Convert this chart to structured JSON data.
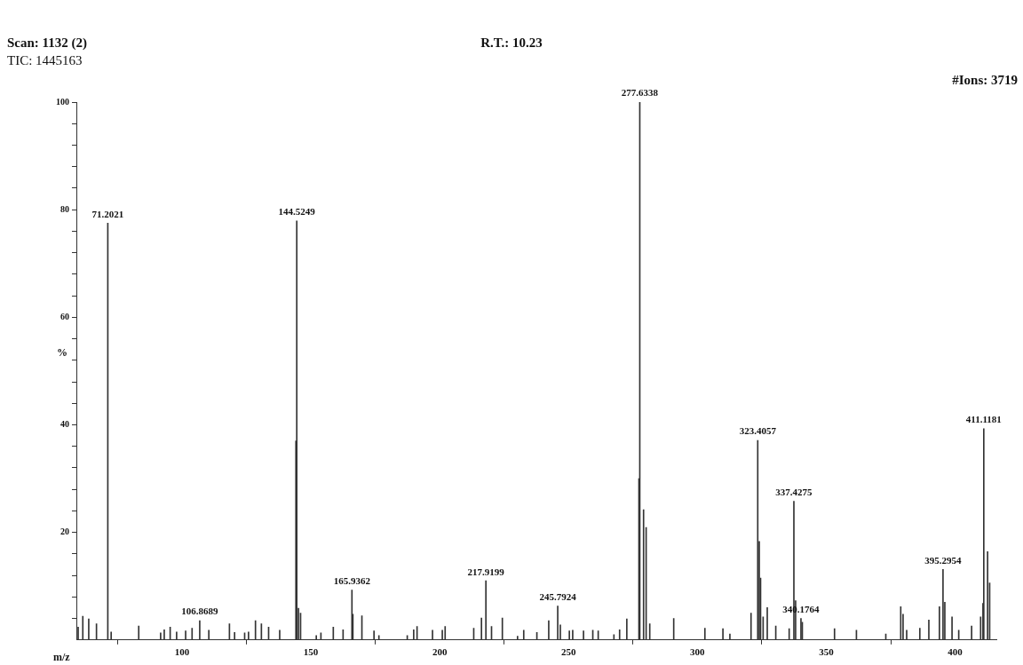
{
  "chart_data": {
    "type": "bar",
    "title": "R.T.: 10.23",
    "xlabel": "m/z",
    "ylabel": "%",
    "color": "#333333",
    "x": [
      59.7,
      61.5,
      63.8,
      66.8,
      70.9,
      71.2021,
      72.5,
      83.2,
      91.7,
      93.1,
      95.4,
      97.9,
      101.4,
      103.9,
      106.8689,
      110.4,
      118.4,
      120.4,
      124.3,
      125.8,
      128.5,
      130.8,
      133.6,
      137.9,
      144.2,
      144.5249,
      145.2,
      146.0,
      152.1,
      153.9,
      158.7,
      162.5,
      165.9362,
      166.3,
      169.8,
      174.5,
      176.4,
      187.4,
      189.9,
      191.2,
      197.2,
      201.0,
      202.1,
      213.2,
      216.2,
      217.9199,
      220.1,
      224.3,
      230.2,
      232.6,
      237.7,
      242.3,
      245.7924,
      246.8,
      250.3,
      251.6,
      255.8,
      259.4,
      261.5,
      267.6,
      269.8,
      272.6,
      277.3,
      277.6338,
      279.1,
      280.1,
      281.5,
      290.8,
      302.9,
      309.9,
      312.6,
      320.8,
      323.4057,
      324.0,
      324.5,
      325.5,
      327.1,
      330.4,
      335.6,
      337.4275,
      338.1,
      340.1764,
      340.7,
      353.2,
      361.7,
      373.1,
      378.9,
      379.8,
      381.2,
      386.3,
      389.8,
      393.9,
      395.2954,
      396.0,
      398.8,
      401.4,
      406.4,
      409.9,
      410.8,
      411.1181,
      412.6,
      413.4
    ],
    "values": [
      2.4,
      4.4,
      3.9,
      3.0,
      null,
      77.5,
      1.5,
      2.6,
      1.3,
      1.9,
      2.4,
      1.5,
      1.7,
      2.2,
      3.6,
      1.8,
      3.0,
      1.4,
      1.3,
      1.5,
      3.6,
      3.0,
      2.4,
      1.8,
      37,
      77.9,
      5.9,
      5.0,
      0.8,
      1.3,
      2.4,
      1.9,
      9.3,
      4.8,
      4.5,
      1.7,
      0.8,
      0.8,
      1.9,
      2.5,
      1.8,
      1.8,
      2.5,
      2.2,
      4.1,
      11.0,
      2.5,
      4.1,
      0.7,
      1.8,
      1.4,
      3.6,
      6.3,
      2.8,
      1.7,
      1.8,
      1.7,
      1.8,
      1.7,
      1.0,
      1.9,
      3.9,
      30,
      100,
      24.2,
      20.9,
      3.0,
      4.0,
      2.2,
      2.1,
      1.1,
      5.0,
      37.1,
      18.3,
      11.5,
      4.3,
      6.0,
      2.6,
      2.1,
      25.8,
      7.3,
      4.0,
      3.3,
      2.1,
      1.8,
      1.1,
      6.2,
      4.8,
      1.8,
      2.2,
      3.7,
      6.2,
      13.1,
      7.0,
      4.3,
      1.8,
      2.6,
      4.3,
      6.8,
      39.3,
      16.4,
      10.6
    ],
    "xlim": [
      59,
      416
    ],
    "xticks": [
      100,
      150,
      200,
      250,
      300,
      350,
      400
    ],
    "ylim": [
      0,
      100
    ],
    "yticks": [
      {
        "value": 4,
        "label": null
      },
      {
        "value": 8,
        "label": null
      },
      {
        "value": 12,
        "label": null
      },
      {
        "value": 16,
        "label": null
      },
      20,
      {
        "value": 24,
        "label": null
      },
      {
        "value": 28,
        "label": null
      },
      {
        "value": 32,
        "label": null
      },
      {
        "value": 36,
        "label": null
      },
      40,
      {
        "value": 44,
        "label": null
      },
      {
        "value": 48,
        "label": null
      },
      {
        "value": 52,
        "label": null
      },
      {
        "value": 56,
        "label": null
      },
      60,
      {
        "value": 64,
        "label": null
      },
      {
        "value": 68,
        "label": null
      },
      {
        "value": 72,
        "label": null
      },
      {
        "value": 76,
        "label": null
      },
      80,
      {
        "value": 84,
        "label": null
      },
      {
        "value": 88,
        "label": null
      },
      {
        "value": 92,
        "label": null
      },
      {
        "value": 96,
        "label": null
      },
      100
    ],
    "annotations": [
      "Scan: 1132 (2)",
      "TIC: 1445163",
      "#Ions: 3719",
      {
        "text": "71.2021",
        "x": 71.2021,
        "y": 77.5
      },
      {
        "text": "106.8689",
        "x": 106.8689,
        "y": 3.6
      },
      {
        "text": "144.5249",
        "x": 144.5249,
        "y": 77.9
      },
      {
        "text": "165.9362",
        "x": 165.9362,
        "y": 9.3
      },
      {
        "text": "217.9199",
        "x": 217.9199,
        "y": 11.0
      },
      {
        "text": "245.7924",
        "x": 245.7924,
        "y": 6.3
      },
      {
        "text": "277.6338",
        "x": 277.6338,
        "y": 100
      },
      {
        "text": "323.4057",
        "x": 323.4057,
        "y": 37.1
      },
      {
        "text": "337.4275",
        "x": 337.4275,
        "y": 25.8
      },
      {
        "text": "340.1764",
        "x": 340.1764,
        "y": 4.0
      },
      {
        "text": "395.2954",
        "x": 395.2954,
        "y": 13.1
      },
      {
        "text": "411.1181",
        "x": 411.1181,
        "y": 39.3
      }
    ],
    "grid": false,
    "legend": false
  }
}
